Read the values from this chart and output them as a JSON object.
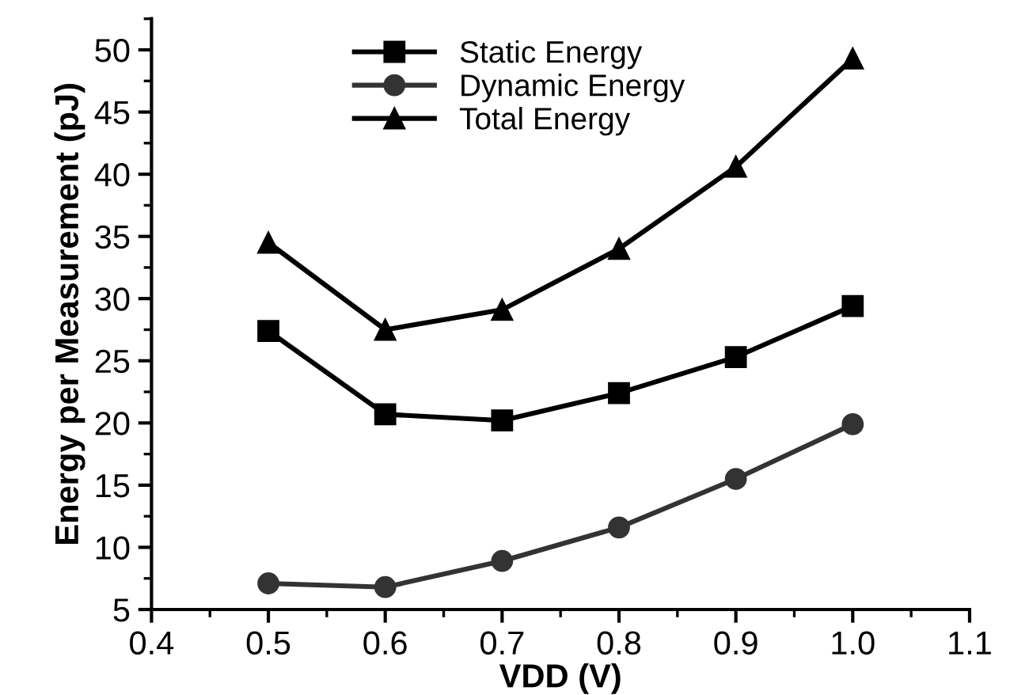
{
  "chart_data": {
    "type": "line",
    "xlabel": "VDD (V)",
    "ylabel": "Energy per Measurement (pJ)",
    "x": [
      0.5,
      0.6,
      0.7,
      0.8,
      0.9,
      1.0
    ],
    "series": [
      {
        "name": "Static Energy",
        "color": "#000000",
        "marker": "square",
        "values": [
          27.4,
          20.7,
          20.2,
          22.4,
          25.3,
          29.4
        ]
      },
      {
        "name": "Dynamic Energy",
        "color": "#333333",
        "marker": "circle",
        "values": [
          7.1,
          6.8,
          8.9,
          11.6,
          15.5,
          19.9
        ]
      },
      {
        "name": "Total Energy",
        "color": "#000000",
        "marker": "triangle",
        "values": [
          34.5,
          27.5,
          29.1,
          34.0,
          40.6,
          49.3
        ]
      }
    ],
    "xlim": [
      0.4,
      1.1
    ],
    "xticks": [
      {
        "value": 0.4,
        "label": "0.4"
      },
      {
        "value": 0.5,
        "label": "0.5"
      },
      {
        "value": 0.6,
        "label": "0.6"
      },
      {
        "value": 0.7,
        "label": "0.7"
      },
      {
        "value": 0.8,
        "label": "0.8"
      },
      {
        "value": 0.9,
        "label": "0.9"
      },
      {
        "value": 1.0,
        "label": "1.0"
      },
      {
        "value": 1.1,
        "label": "1.1"
      }
    ],
    "ylim": [
      5,
      52.5
    ],
    "yticks": [
      5,
      10,
      15,
      20,
      25,
      30,
      35,
      40,
      45,
      50
    ],
    "grid": false,
    "legend": "top",
    "line_style": "solid"
  }
}
